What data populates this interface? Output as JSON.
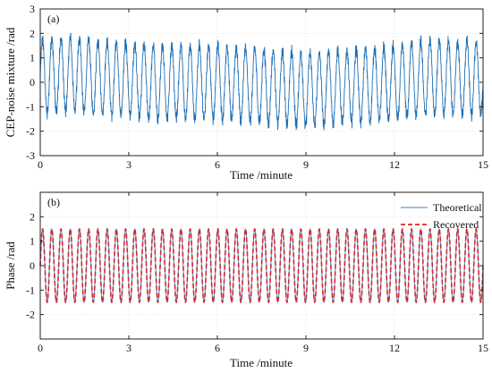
{
  "chart_data": [
    {
      "type": "line",
      "panel_label": "(a)",
      "xlabel": "Time /minute",
      "ylabel": "CEP-noise mixture /rad",
      "xlim": [
        0,
        15
      ],
      "ylim": [
        -3,
        3
      ],
      "xticks": [
        0,
        3,
        6,
        9,
        12,
        15
      ],
      "yticks": [
        -3,
        -2,
        -1,
        0,
        1,
        2,
        3
      ],
      "grid": true,
      "series": [
        {
          "color": "#1f6fb4",
          "style": "solid",
          "signal": {
            "cycles_per_minute": 3.2,
            "base_amplitude": 1.5,
            "noise_amplitude": 0.3,
            "envelope_minutes": [
              0,
              1,
              2,
              4,
              6,
              8,
              9,
              10,
              12,
              13,
              15
            ],
            "envelope_mean": [
              0.2,
              0.35,
              0.2,
              0.0,
              0.0,
              -0.2,
              -0.3,
              -0.2,
              -0.05,
              0.2,
              0.15
            ]
          }
        }
      ]
    },
    {
      "type": "line",
      "panel_label": "(b)",
      "xlabel": "Time /minute",
      "ylabel": "Phase /rad",
      "xlim": [
        0,
        15
      ],
      "ylim": [
        -3,
        3
      ],
      "xticks": [
        0,
        3,
        6,
        9,
        12,
        15
      ],
      "yticks": [
        -2,
        -1,
        0,
        1,
        2
      ],
      "grid": true,
      "legend_position": "top-right",
      "series": [
        {
          "name": "Theoretical",
          "color": "#5b9bd5",
          "style": "solid",
          "signal": {
            "cycles_per_minute": 3.2,
            "amplitude": 1.5
          }
        },
        {
          "name": "Recovered",
          "color": "#d62728",
          "style": "dashed",
          "signal": {
            "cycles_per_minute": 3.2,
            "amplitude": 1.5
          }
        }
      ]
    }
  ]
}
